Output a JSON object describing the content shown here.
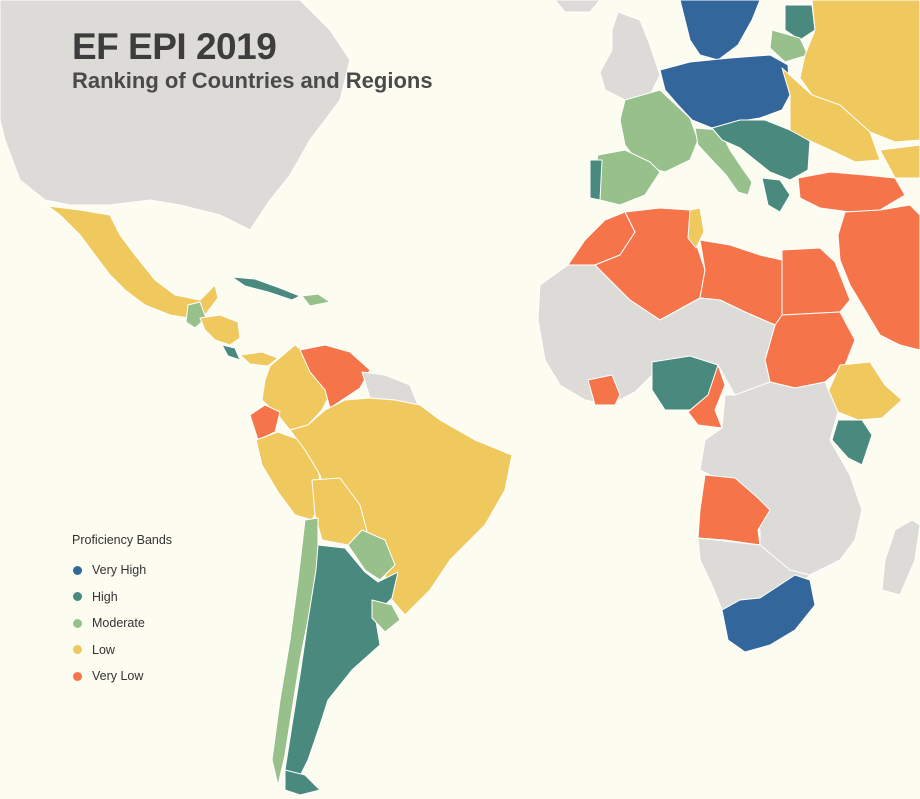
{
  "header": {
    "title": "EF EPI 2019",
    "subtitle": "Ranking of Countries and Regions"
  },
  "legend": {
    "title": "Proficiency Bands",
    "bands": [
      {
        "id": "very-high",
        "label": "Very High",
        "color": "#33669a"
      },
      {
        "id": "high",
        "label": "High",
        "color": "#4a8a7e"
      },
      {
        "id": "moderate",
        "label": "Moderate",
        "color": "#97c08a"
      },
      {
        "id": "low",
        "label": "Low",
        "color": "#f0c95e"
      },
      {
        "id": "very-low",
        "label": "Very Low",
        "color": "#f5744a"
      }
    ]
  },
  "colors": {
    "background": "#fdfcf0",
    "no_data": "#dcdbd8",
    "border": "#ffffff"
  }
}
